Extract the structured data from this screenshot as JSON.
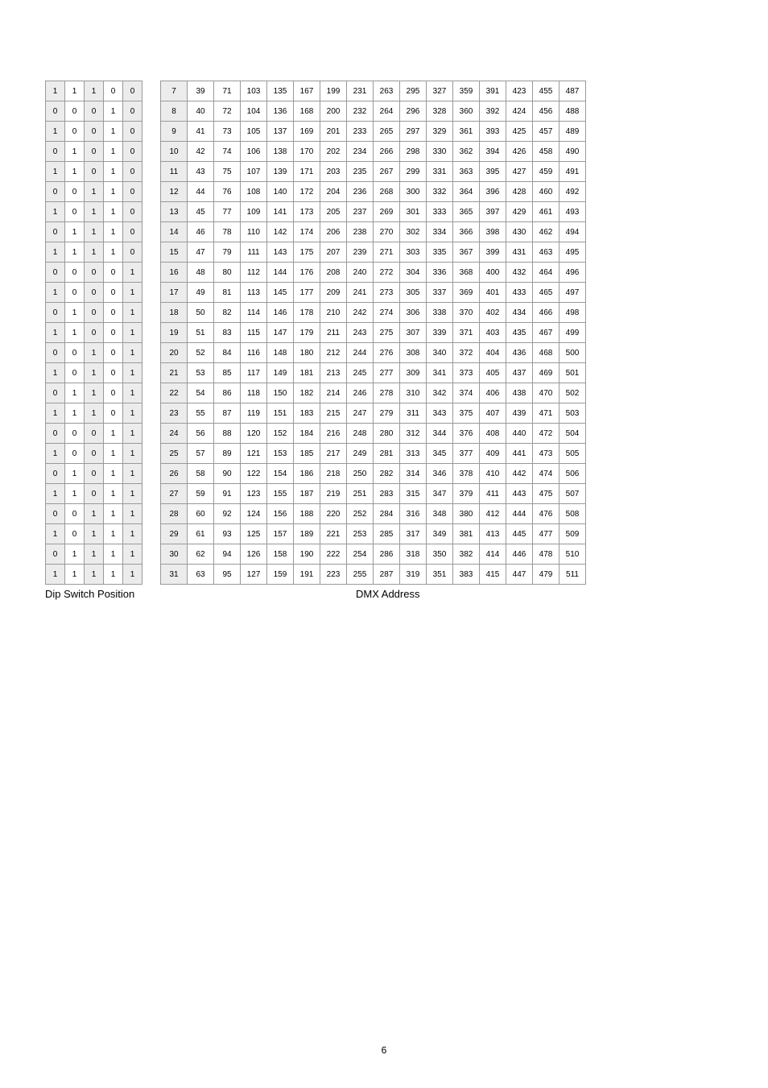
{
  "dip_table": {
    "cols": 5,
    "shaded_cols": [
      0,
      2,
      4
    ],
    "rows": [
      [
        1,
        1,
        1,
        0,
        0
      ],
      [
        0,
        0,
        0,
        1,
        0
      ],
      [
        1,
        0,
        0,
        1,
        0
      ],
      [
        0,
        1,
        0,
        1,
        0
      ],
      [
        1,
        1,
        0,
        1,
        0
      ],
      [
        0,
        0,
        1,
        1,
        0
      ],
      [
        1,
        0,
        1,
        1,
        0
      ],
      [
        0,
        1,
        1,
        1,
        0
      ],
      [
        1,
        1,
        1,
        1,
        0
      ],
      [
        0,
        0,
        0,
        0,
        1
      ],
      [
        1,
        0,
        0,
        0,
        1
      ],
      [
        0,
        1,
        0,
        0,
        1
      ],
      [
        1,
        1,
        0,
        0,
        1
      ],
      [
        0,
        0,
        1,
        0,
        1
      ],
      [
        1,
        0,
        1,
        0,
        1
      ],
      [
        0,
        1,
        1,
        0,
        1
      ],
      [
        1,
        1,
        1,
        0,
        1
      ],
      [
        0,
        0,
        0,
        1,
        1
      ],
      [
        1,
        0,
        0,
        1,
        1
      ],
      [
        0,
        1,
        0,
        1,
        1
      ],
      [
        1,
        1,
        0,
        1,
        1
      ],
      [
        0,
        0,
        1,
        1,
        1
      ],
      [
        1,
        0,
        1,
        1,
        1
      ],
      [
        0,
        1,
        1,
        1,
        1
      ],
      [
        1,
        1,
        1,
        1,
        1
      ]
    ]
  },
  "dmx_table": {
    "cols": 16,
    "shaded_cols": [
      0
    ],
    "start_values": [
      7,
      39,
      71,
      103,
      135,
      167,
      199,
      231,
      263,
      295,
      327,
      359,
      391,
      423,
      455,
      487
    ],
    "row_count": 25
  },
  "labels": {
    "dip": "Dip Switch Position",
    "dmx": "DMX    Address"
  },
  "page_number": "6",
  "colors": {
    "border": "#999999",
    "shaded": "#ececec",
    "background": "#ffffff",
    "text": "#000000"
  },
  "font": {
    "table_fontsize": 10,
    "label_fontsize": 13,
    "pagenum_fontsize": 12
  }
}
